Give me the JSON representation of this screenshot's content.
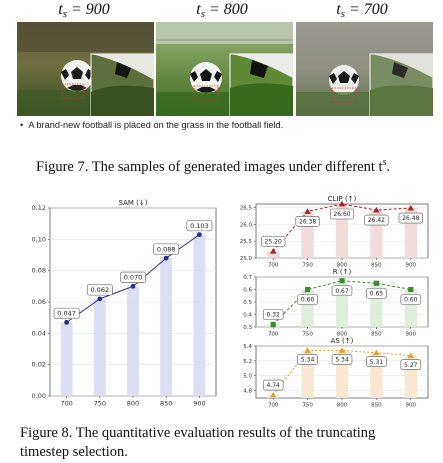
{
  "figure7": {
    "panels": [
      {
        "ts_value": "900"
      },
      {
        "ts_value": "800"
      },
      {
        "ts_value": "700"
      }
    ],
    "ts_symbol": "t",
    "ts_sub": "s",
    "prompt": "A brand-new football is placed on the grass in the football field.",
    "caption": "Figure 7. The samples of generated images under different t",
    "caption_sup": "s",
    "caption_end": "."
  },
  "figure8": {
    "caption_line1": "Figure 8.  The quantitative evaluation results of the truncating",
    "caption_line2": "timestep selection."
  },
  "colors": {
    "sam_line": "#2b2f8f",
    "sam_bar": "#d8daf0",
    "clip_line": "#a8241c",
    "clip_bar": "#f0d8d8",
    "r_line": "#3d8b2e",
    "r_bar": "#dcecd6",
    "as_line": "#e0a030",
    "as_bar": "#f8e6cc"
  },
  "chart_data": [
    {
      "type": "line",
      "title": "SAM (↓)",
      "x": [
        "700",
        "750",
        "800",
        "850",
        "900"
      ],
      "values": [
        0.047,
        0.062,
        0.07,
        0.088,
        0.103
      ],
      "labels": [
        "0.047",
        "0.062",
        "0.070",
        "0.088",
        "0.103"
      ],
      "ylim": [
        0.0,
        0.12
      ],
      "yticks": [
        "0.00",
        "0.02",
        "0.04",
        "0.06",
        "0.08",
        "0.10",
        "0.12"
      ],
      "grid": true
    },
    {
      "type": "line",
      "title": "CLIP (↑)",
      "x": [
        "700",
        "750",
        "800",
        "850",
        "900"
      ],
      "values": [
        25.2,
        26.38,
        26.6,
        26.42,
        26.48
      ],
      "labels": [
        "25.20",
        "26.38",
        "26.60",
        "26.42",
        "26.48"
      ],
      "ylim": [
        25.0,
        26.6
      ],
      "yticks": [
        "25.0",
        "25.5",
        "26.0",
        "26.5"
      ],
      "grid": true
    },
    {
      "type": "line",
      "title": "R (↑)",
      "x": [
        "700",
        "750",
        "800",
        "850",
        "900"
      ],
      "values": [
        0.32,
        0.6,
        0.67,
        0.65,
        0.6
      ],
      "labels": [
        "0.32",
        "0.60",
        "0.67",
        "0.65",
        "0.60"
      ],
      "ylim": [
        0.3,
        0.7
      ],
      "yticks": [
        "0.3",
        "0.4",
        "0.5",
        "0.6",
        "0.7"
      ],
      "grid": true
    },
    {
      "type": "line",
      "title": "AS (↑)",
      "x": [
        "700",
        "750",
        "800",
        "850",
        "900"
      ],
      "values": [
        4.74,
        5.34,
        5.34,
        5.31,
        5.27
      ],
      "labels": [
        "4.74",
        "5.34",
        "5.34",
        "5.31",
        "5.27"
      ],
      "ylim": [
        4.7,
        5.4
      ],
      "yticks": [
        "4.8",
        "5.0",
        "5.2",
        "5.4"
      ],
      "grid": true
    }
  ]
}
